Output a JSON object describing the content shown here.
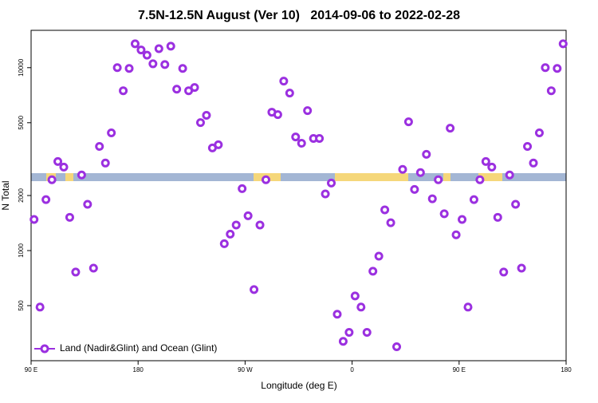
{
  "chart_data": {
    "type": "scatter",
    "title": "7.5N-12.5N August (Ver 10)   2014-09-06 to 2022-02-28",
    "x_label": "Longitude (deg E)",
    "y_label": "N Total",
    "yscale": "log",
    "grid": false,
    "legend": "lower left",
    "xlim": [
      90,
      540
    ],
    "xticks": [
      {
        "value": 90,
        "label": "90 E"
      },
      180,
      {
        "value": 270,
        "label": "90 W"
      },
      {
        "value": 360,
        "label": "0"
      },
      {
        "value": 450,
        "label": "90 E"
      },
      {
        "value": 540,
        "label": "180"
      }
    ],
    "ylim": [
      250,
      16000
    ],
    "yticks": [
      500,
      1000,
      2000,
      5000,
      10000
    ],
    "x": [
      92.5,
      97.5,
      102.5,
      107.5,
      112.5,
      117.5,
      122.5,
      127.5,
      132.5,
      137.5,
      142.5,
      147.5,
      152.5,
      157.5,
      162.5,
      167.5,
      172.5,
      177.5,
      182.5,
      187.5,
      192.5,
      197.5,
      202.5,
      207.5,
      212.5,
      217.5,
      222.5,
      227.5,
      232.5,
      237.5,
      242.5,
      247.5,
      252.5,
      257.5,
      262.5,
      267.5,
      272.5,
      277.5,
      282.5,
      287.5,
      292.5,
      297.5,
      302.5,
      307.5,
      312.5,
      317.5,
      322.5,
      327.5,
      332.5,
      337.5,
      342.5,
      347.5,
      352.5,
      357.5,
      362.5,
      367.5,
      372.5,
      377.5,
      382.5,
      387.5,
      392.5,
      397.5,
      402.5,
      407.5,
      412.5,
      417.5,
      422.5,
      427.5,
      432.5,
      437.5,
      442.5,
      447.5,
      452.5,
      457.5,
      462.5,
      467.5,
      472.5,
      477.5,
      482.5,
      487.5,
      492.5,
      497.5,
      502.5,
      507.5,
      512.5,
      517.5,
      522.5,
      527.5,
      532.5,
      537.5
    ],
    "series": [
      {
        "name": "Land (Nadir&Glint) and Ocean (Glint)",
        "color": "#9b30e0",
        "values": [
          1480,
          491,
          1900,
          2440,
          3070,
          2860,
          1520,
          763,
          2590,
          1790,
          802,
          3710,
          3010,
          4400,
          10000,
          7480,
          9900,
          13500,
          12500,
          11700,
          10500,
          12700,
          10400,
          13100,
          7630,
          9900,
          7480,
          7790,
          5010,
          5490,
          3640,
          3790,
          1090,
          1230,
          1380,
          2180,
          1550,
          612,
          1380,
          2440,
          5710,
          5540,
          8440,
          7260,
          4180,
          3860,
          5820,
          4100,
          4100,
          2040,
          2340,
          449,
          319,
          357,
          565,
          491,
          357,
          771,
          932,
          1670,
          1420,
          298,
          2780,
          5060,
          2160,
          2670,
          3360,
          1920,
          2440,
          1590,
          4670,
          1220,
          1480,
          491,
          1900,
          2440,
          3070,
          2860,
          1520,
          763,
          2590,
          1790,
          802,
          3710,
          3010,
          4400,
          10000,
          7480,
          9900,
          13500
        ]
      }
    ]
  }
}
